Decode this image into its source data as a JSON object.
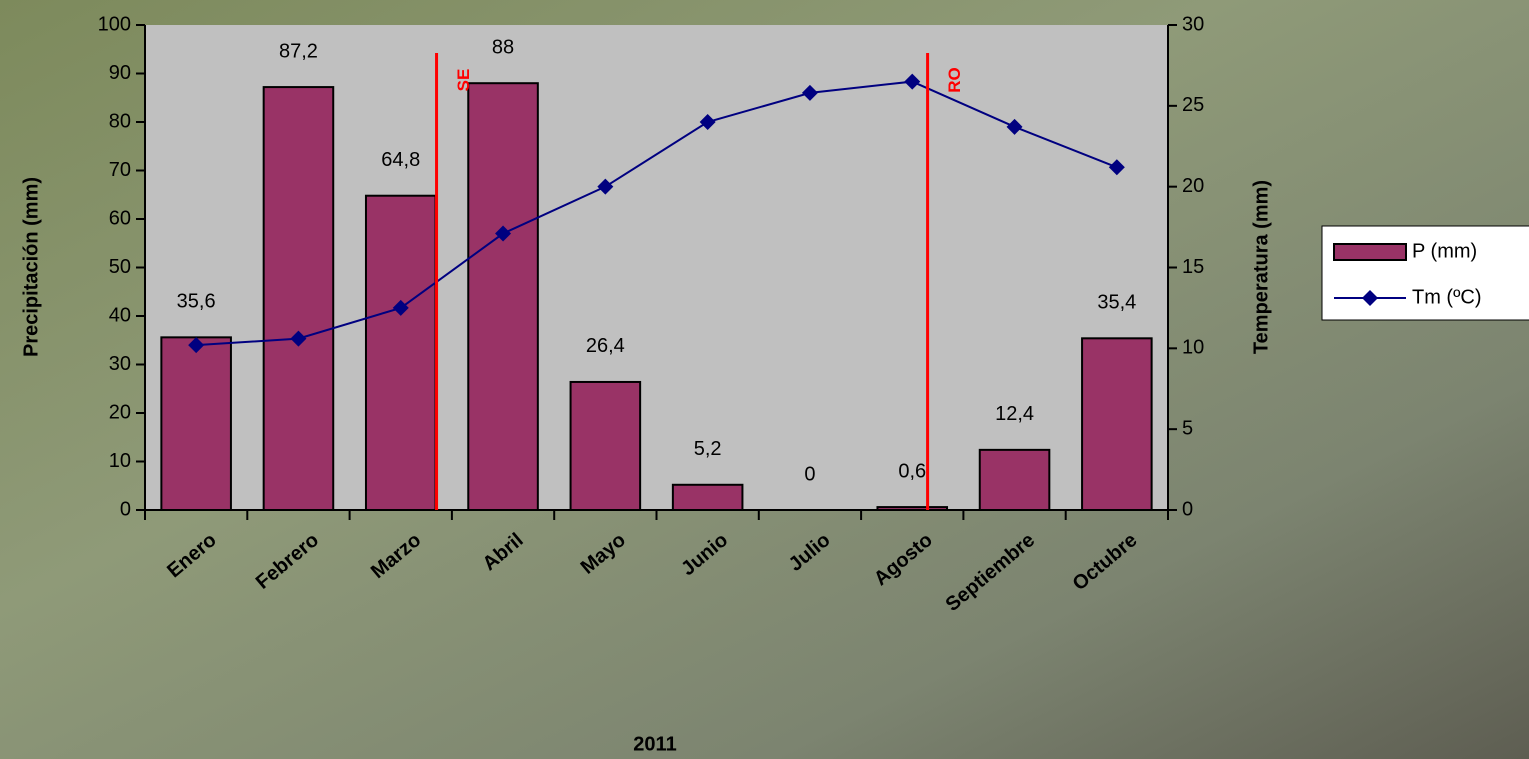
{
  "chart_data": {
    "type": "bar_line",
    "x_label": "2011",
    "y_label": "Precipitación (mm)",
    "y2_label": "Temperatura (mm)",
    "categories": [
      "Enero",
      "Febrero",
      "Marzo",
      "Abril",
      "Mayo",
      "Junio",
      "Julio",
      "Agosto",
      "Septiembre",
      "Octubre"
    ],
    "series": [
      {
        "name": "P (mm)",
        "type": "bar",
        "color": "#993366",
        "values": [
          35.6,
          87.2,
          64.8,
          88,
          26.4,
          5.2,
          0,
          0.6,
          12.4,
          35.4
        ],
        "value_labels": [
          "35,6",
          "87,2",
          "64,8",
          "88",
          "26,4",
          "5,2",
          "0",
          "0,6",
          "12,4",
          "35,4"
        ]
      },
      {
        "name": "Tm (ºC)",
        "type": "line",
        "axis": "y2",
        "color": "#000080",
        "values": [
          10.2,
          10.6,
          12.5,
          17.1,
          20.0,
          24.0,
          25.8,
          26.5,
          23.7,
          21.2
        ]
      }
    ],
    "annotations": [
      "SE",
      "RO"
    ],
    "ylim": [
      0,
      100
    ],
    "yticks": [
      0,
      10,
      20,
      30,
      40,
      50,
      60,
      70,
      80,
      90,
      100
    ],
    "y2lim": [
      0,
      30
    ],
    "y2ticks": [
      0,
      5,
      10,
      15,
      20,
      25,
      30
    ],
    "legend": "right"
  }
}
